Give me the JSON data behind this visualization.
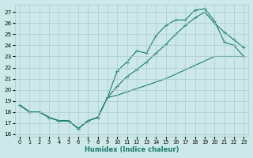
{
  "xlabel": "Humidex (Indice chaleur)",
  "xlim": [
    -0.5,
    23.5
  ],
  "ylim": [
    15.8,
    27.7
  ],
  "yticks": [
    16,
    17,
    18,
    19,
    20,
    21,
    22,
    23,
    24,
    25,
    26,
    27
  ],
  "xticks": [
    0,
    1,
    2,
    3,
    4,
    5,
    6,
    7,
    8,
    9,
    10,
    11,
    12,
    13,
    14,
    15,
    16,
    17,
    18,
    19,
    20,
    21,
    22,
    23
  ],
  "line_color": "#1a7a6e",
  "bg_color": "#cce8e8",
  "grid_color": "#aacccc",
  "line1_x": [
    0,
    1,
    2,
    3,
    4,
    5,
    6,
    7,
    8,
    9,
    10,
    11,
    12,
    13,
    14,
    15,
    16,
    17,
    18,
    19,
    20,
    21,
    22,
    23
  ],
  "line1_y": [
    18.6,
    18.0,
    18.0,
    17.5,
    17.2,
    17.2,
    16.5,
    17.2,
    17.5,
    19.3,
    21.7,
    22.5,
    23.5,
    23.3,
    24.9,
    25.8,
    26.3,
    26.3,
    27.2,
    27.3,
    26.2,
    24.3,
    24.0,
    23.0
  ],
  "line2_x": [
    0,
    1,
    2,
    3,
    4,
    5,
    6,
    7,
    8,
    9,
    10,
    11,
    12,
    13,
    14,
    15,
    16,
    17,
    18,
    19,
    20,
    21,
    22,
    23
  ],
  "line2_y": [
    18.6,
    18.0,
    18.0,
    17.5,
    17.2,
    17.2,
    16.5,
    17.2,
    17.5,
    19.3,
    20.3,
    21.2,
    21.8,
    22.5,
    23.3,
    24.1,
    25.0,
    25.8,
    26.5,
    27.0,
    26.0,
    25.2,
    24.5,
    23.8
  ],
  "line3_x": [
    0,
    1,
    2,
    3,
    4,
    5,
    6,
    7,
    8,
    9,
    10,
    11,
    12,
    13,
    14,
    15,
    16,
    17,
    18,
    19,
    20,
    21,
    22,
    23
  ],
  "line3_y": [
    18.6,
    18.0,
    18.0,
    17.5,
    17.2,
    17.2,
    16.5,
    17.2,
    17.5,
    19.3,
    19.5,
    19.8,
    20.1,
    20.4,
    20.7,
    21.0,
    21.4,
    21.8,
    22.2,
    22.6,
    23.0,
    23.0,
    23.0,
    23.0
  ]
}
